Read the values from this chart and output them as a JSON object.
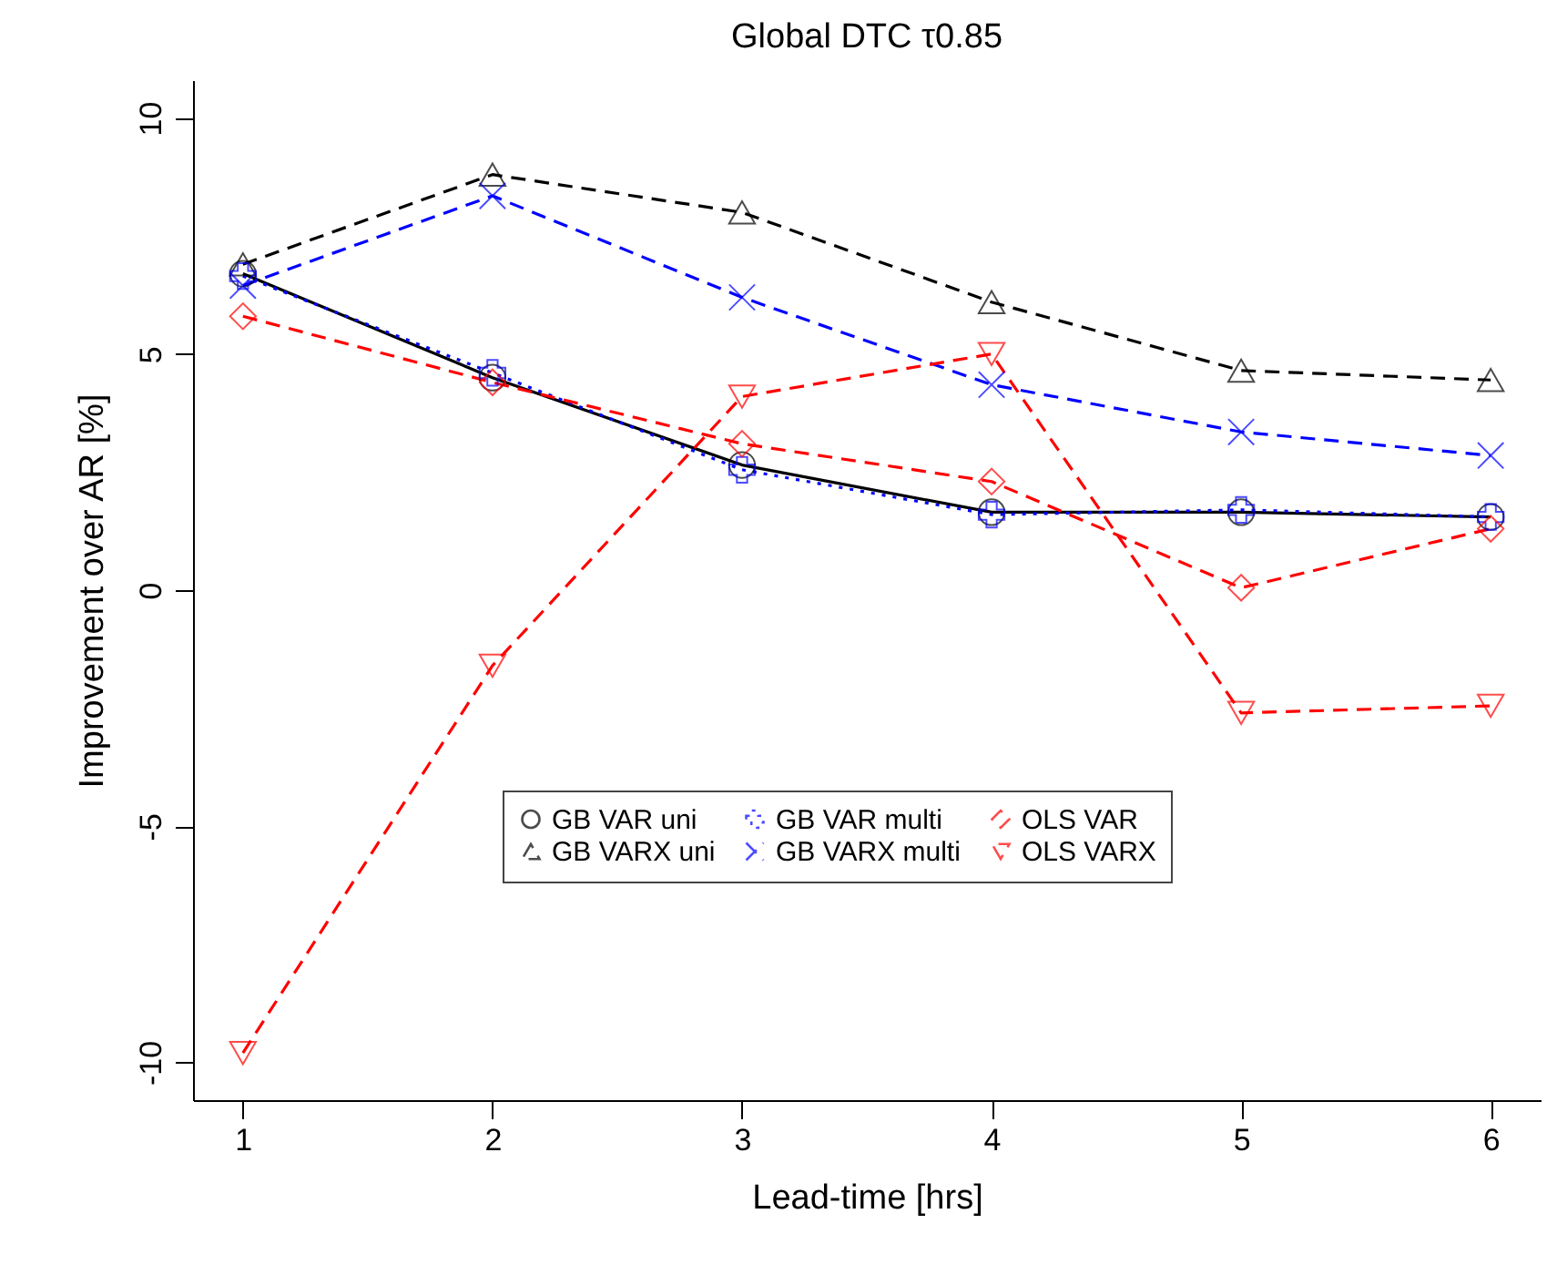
{
  "chart_data": {
    "type": "line",
    "title": "Global DTC τ0.85",
    "xlabel": "Lead-time [hrs]",
    "ylabel": "Improvement over AR [%]",
    "x": [
      1,
      2,
      3,
      4,
      5,
      6
    ],
    "xlim": [
      0.8,
      6.2
    ],
    "xticks": [
      1,
      2,
      3,
      4,
      5,
      6
    ],
    "ylim": [
      -10.8,
      10.8
    ],
    "yticks": [
      -10,
      -5,
      0,
      5,
      10
    ],
    "grid": false,
    "legend": "bottom",
    "series": [
      {
        "name": "GB VAR uni",
        "color": "#000000",
        "marker": "circle",
        "line_style": "solid",
        "values": [
          6.7,
          4.5,
          2.65,
          1.65,
          1.65,
          1.55
        ]
      },
      {
        "name": "GB VARX uni",
        "color": "#000000",
        "marker": "triangle",
        "line_style": "dashed",
        "values": [
          6.9,
          8.8,
          8.0,
          6.1,
          4.65,
          4.45
        ]
      },
      {
        "name": "GB VAR multi",
        "color": "#0000ff",
        "marker": "cross",
        "line_style": "dotted",
        "values": [
          6.65,
          4.6,
          2.55,
          1.6,
          1.7,
          1.55
        ]
      },
      {
        "name": "GB VARX multi",
        "color": "#0000ff",
        "marker": "cross",
        "line_style": "dashed",
        "values": [
          6.45,
          8.35,
          6.2,
          4.35,
          3.35,
          2.85
        ]
      },
      {
        "name": "OLS VAR",
        "color": "#ff0000",
        "marker": "diamond",
        "line_style": "dashed",
        "values": [
          5.8,
          4.4,
          3.1,
          2.3,
          0.05,
          1.3
        ]
      },
      {
        "name": "OLS VARX",
        "color": "#ff0000",
        "marker": "triangle",
        "line_style": "dashed",
        "values": [
          -9.8,
          -1.6,
          4.1,
          5.0,
          -2.6,
          -2.45
        ]
      }
    ]
  }
}
